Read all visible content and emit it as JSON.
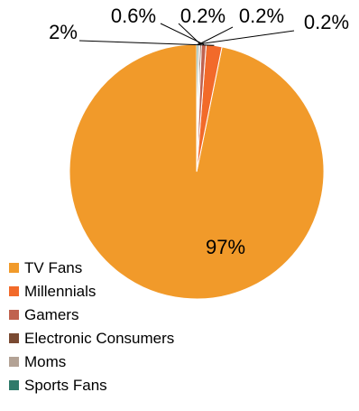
{
  "chart_data": {
    "type": "pie",
    "title": "",
    "slices": [
      {
        "label": "TV Fans",
        "value": 97,
        "value_label": "97%",
        "color": "#F19A2A"
      },
      {
        "label": "Millennials",
        "value": 2,
        "value_label": "2%",
        "color": "#F26A2A"
      },
      {
        "label": "Gamers",
        "value": 0.6,
        "value_label": "0.6%",
        "color": "#C0624F"
      },
      {
        "label": "Electronic Consumers",
        "value": 0.2,
        "value_label": "0.2%",
        "color": "#7A4A32"
      },
      {
        "label": "Moms",
        "value": 0.2,
        "value_label": "0.2%",
        "color": "#B3A295"
      },
      {
        "label": "Sports Fans",
        "value": 0.2,
        "value_label": "0.2%",
        "color": "#2F7A6A"
      }
    ],
    "legend_position": "bottom-left"
  }
}
